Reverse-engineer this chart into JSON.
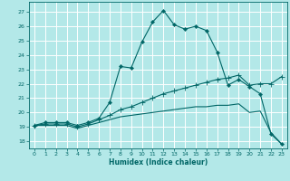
{
  "title": "",
  "xlabel": "Humidex (Indice chaleur)",
  "bg_color": "#b3e8e8",
  "line_color": "#006666",
  "grid_color": "#ffffff",
  "xlim": [
    -0.5,
    23.5
  ],
  "ylim": [
    17.5,
    27.7
  ],
  "xticks": [
    0,
    1,
    2,
    3,
    4,
    5,
    6,
    7,
    8,
    9,
    10,
    11,
    12,
    13,
    14,
    15,
    16,
    17,
    18,
    19,
    20,
    21,
    22,
    23
  ],
  "yticks": [
    18,
    19,
    20,
    21,
    22,
    23,
    24,
    25,
    26,
    27
  ],
  "curve1_x": [
    0,
    1,
    2,
    3,
    4,
    5,
    6,
    7,
    8,
    9,
    10,
    11,
    12,
    13,
    14,
    15,
    16,
    17,
    18,
    19,
    20,
    21,
    22,
    23
  ],
  "curve1_y": [
    19.1,
    19.3,
    19.3,
    19.3,
    19.1,
    19.3,
    19.6,
    20.7,
    23.2,
    23.1,
    24.9,
    26.3,
    27.1,
    26.1,
    25.8,
    26.0,
    25.7,
    24.2,
    21.9,
    22.3,
    21.8,
    21.3,
    18.5,
    17.8
  ],
  "curve2_x": [
    0,
    1,
    2,
    3,
    4,
    5,
    6,
    7,
    8,
    9,
    10,
    11,
    12,
    13,
    14,
    15,
    16,
    17,
    18,
    19,
    20,
    21,
    22,
    23
  ],
  "curve2_y": [
    19.1,
    19.2,
    19.2,
    19.2,
    19.0,
    19.2,
    19.5,
    19.8,
    20.2,
    20.4,
    20.7,
    21.0,
    21.3,
    21.5,
    21.7,
    21.9,
    22.1,
    22.3,
    22.4,
    22.6,
    21.9,
    22.0,
    22.0,
    22.5
  ],
  "curve3_x": [
    0,
    1,
    2,
    3,
    4,
    5,
    6,
    7,
    8,
    9,
    10,
    11,
    12,
    13,
    14,
    15,
    16,
    17,
    18,
    19,
    20,
    21,
    22,
    23
  ],
  "curve3_y": [
    19.1,
    19.1,
    19.1,
    19.1,
    18.9,
    19.1,
    19.3,
    19.5,
    19.7,
    19.8,
    19.9,
    20.0,
    20.1,
    20.2,
    20.3,
    20.4,
    20.4,
    20.5,
    20.5,
    20.6,
    20.0,
    20.1,
    18.6,
    17.8
  ]
}
